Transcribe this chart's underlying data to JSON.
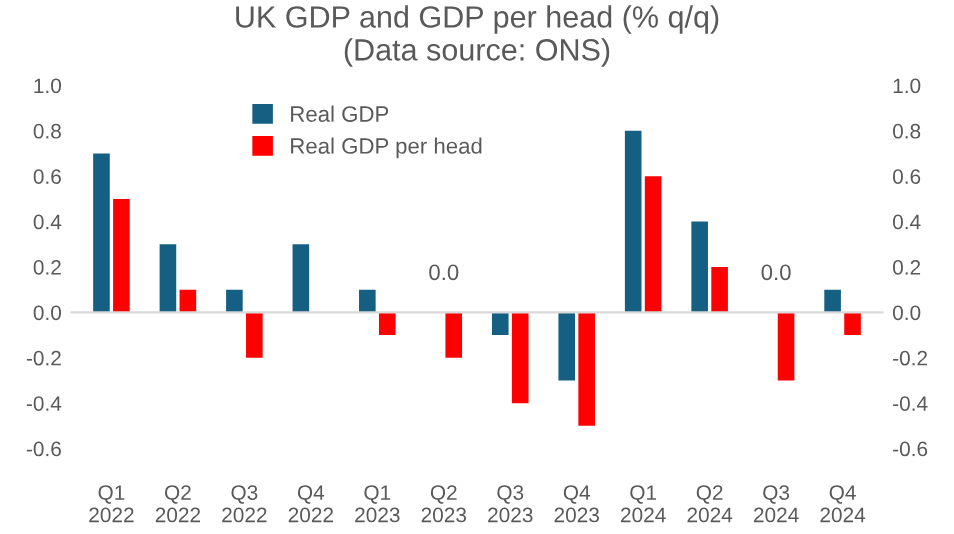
{
  "chart_data": {
    "type": "bar",
    "title": "UK GDP and GDP per head (% q/q)\n(Data source: ONS)",
    "categories": [
      "Q1\n2022",
      "Q2\n2022",
      "Q3\n2022",
      "Q4\n2022",
      "Q1\n2023",
      "Q2\n2023",
      "Q3\n2023",
      "Q4\n2023",
      "Q1\n2024",
      "Q2\n2024",
      "Q3\n2024",
      "Q4\n2024"
    ],
    "series": [
      {
        "name": "Real GDP",
        "color": "#156082",
        "values": [
          0.7,
          0.3,
          0.1,
          0.3,
          0.1,
          0.0,
          -0.1,
          -0.3,
          0.8,
          0.4,
          0.0,
          0.1
        ]
      },
      {
        "name": "Real GDP per head",
        "color": "#ff0000",
        "values": [
          0.5,
          0.1,
          -0.2,
          0.0,
          -0.1,
          -0.2,
          -0.4,
          -0.5,
          0.6,
          0.2,
          -0.3,
          -0.1
        ]
      }
    ],
    "annotations": [
      {
        "text": "0.0",
        "x": "Q2\n2023",
        "y": 0.0
      },
      {
        "text": "0.0",
        "x": "Q3\n2024",
        "y": 0.0
      }
    ],
    "ylim": [
      -0.6,
      1.0
    ],
    "yticks": [
      -0.6,
      -0.4,
      -0.2,
      {
        "value": 0.0,
        "label": "0.0"
      },
      0.2,
      0.4,
      0.6,
      0.8,
      {
        "value": 1.0,
        "label": "1.0"
      }
    ],
    "y2lim": [
      -0.6,
      1.0
    ],
    "y2ticks": [
      -0.6,
      -0.4,
      -0.2,
      {
        "value": 0.0,
        "label": "0.0"
      },
      0.2,
      0.4,
      0.6,
      0.8,
      {
        "value": 1.0,
        "label": "1.0"
      }
    ],
    "legend": "top left"
  }
}
